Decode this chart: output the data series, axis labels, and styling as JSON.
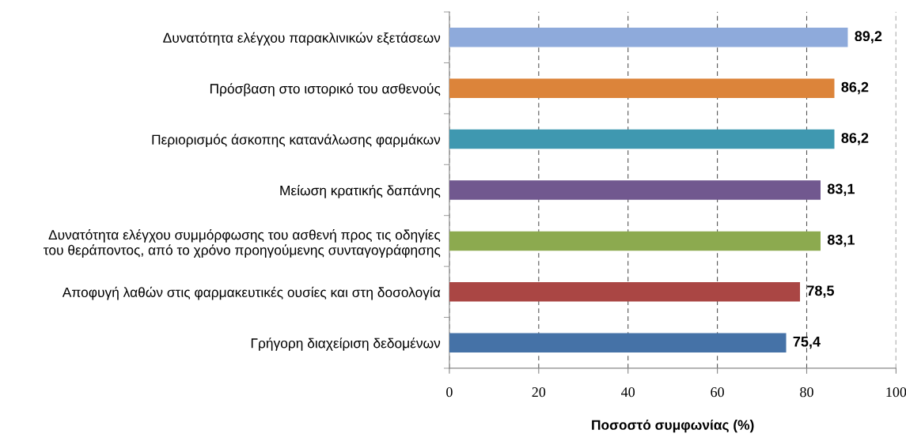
{
  "chart_data": {
    "type": "bar",
    "orientation": "horizontal",
    "categories": [
      "Δυνατότητα ελέγχου παρακλινικών εξετάσεων",
      "Πρόσβαση στο ιστορικό του ασθενούς",
      "Περιορισμός άσκοπης κατανάλωσης φαρμάκων",
      "Μείωση κρατικής δαπάνης",
      "Δυνατότητα ελέγχου συμμόρφωσης του ασθενή προς τις οδηγίες\nτου θεράποντος, από το χρόνο προηγούμενης συνταγογράφησης",
      "Αποφυγή λαθών στις φαρμακευτικές ουσίες και στη δοσολογία",
      "Γρήγορη διαχείριση δεδομένων"
    ],
    "values": [
      89.2,
      86.2,
      86.2,
      83.1,
      83.1,
      78.5,
      75.4
    ],
    "colors": [
      "#8eaadb",
      "#dc843a",
      "#3f98b0",
      "#71588f",
      "#8caa4f",
      "#aa4644",
      "#4572a7"
    ],
    "value_labels": [
      "89,2",
      "86,2",
      "86,2",
      "83,1",
      "83,1",
      "78,5",
      "75,4"
    ],
    "xlim": [
      0,
      100
    ],
    "xticks": [
      0,
      20,
      40,
      60,
      80,
      100
    ],
    "xlabel": "Ποσοστό συμφωνίας (%)",
    "grid": "x"
  }
}
